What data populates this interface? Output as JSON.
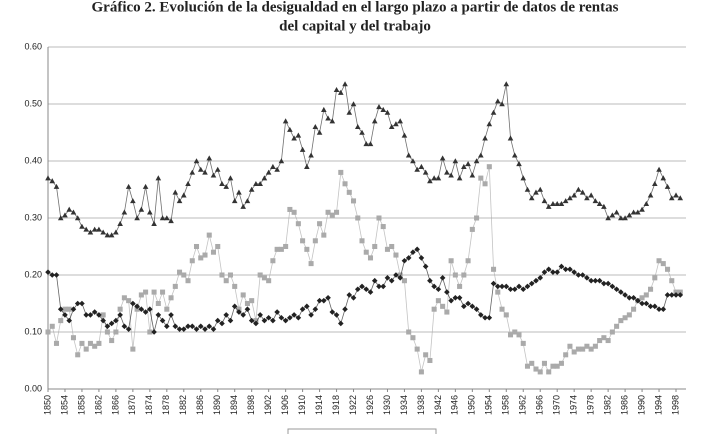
{
  "chart_data": {
    "type": "line",
    "title": [
      "Gráfico 2. Evolución de la desigualdad en el largo plazo a partir de datos de rentas",
      "del capital y del trabajo"
    ],
    "x": [
      1850,
      1851,
      1852,
      1853,
      1854,
      1855,
      1856,
      1857,
      1858,
      1859,
      1860,
      1861,
      1862,
      1863,
      1864,
      1865,
      1866,
      1867,
      1868,
      1869,
      1870,
      1871,
      1872,
      1873,
      1874,
      1875,
      1876,
      1877,
      1878,
      1879,
      1880,
      1881,
      1882,
      1883,
      1884,
      1885,
      1886,
      1887,
      1888,
      1889,
      1890,
      1891,
      1892,
      1893,
      1894,
      1895,
      1896,
      1897,
      1898,
      1899,
      1900,
      1901,
      1902,
      1903,
      1904,
      1905,
      1906,
      1907,
      1908,
      1909,
      1910,
      1911,
      1912,
      1913,
      1914,
      1915,
      1916,
      1917,
      1918,
      1919,
      1920,
      1921,
      1922,
      1923,
      1924,
      1925,
      1926,
      1927,
      1928,
      1929,
      1930,
      1931,
      1932,
      1933,
      1934,
      1935,
      1936,
      1937,
      1938,
      1939,
      1940,
      1941,
      1942,
      1943,
      1944,
      1945,
      1946,
      1947,
      1948,
      1949,
      1950,
      1951,
      1952,
      1953,
      1954,
      1955,
      1956,
      1957,
      1958,
      1959,
      1960,
      1961,
      1962,
      1963,
      1964,
      1965,
      1966,
      1967,
      1968,
      1969,
      1970,
      1971,
      1972,
      1973,
      1974,
      1975,
      1976,
      1977,
      1978,
      1979,
      1980,
      1981,
      1982,
      1983,
      1984,
      1985,
      1986,
      1987,
      1988,
      1989,
      1990,
      1991,
      1992,
      1993,
      1994,
      1995,
      1996,
      1997,
      1998,
      1999
    ],
    "series": [
      {
        "color": "#333333",
        "marker": "triangle",
        "values": [
          0.37,
          0.365,
          0.355,
          0.3,
          0.305,
          0.315,
          0.31,
          0.3,
          0.285,
          0.28,
          0.275,
          0.28,
          0.28,
          0.275,
          0.27,
          0.27,
          0.275,
          0.29,
          0.31,
          0.355,
          0.33,
          0.3,
          0.315,
          0.355,
          0.31,
          0.29,
          0.37,
          0.3,
          0.3,
          0.295,
          0.345,
          0.33,
          0.34,
          0.36,
          0.38,
          0.4,
          0.385,
          0.38,
          0.405,
          0.375,
          0.385,
          0.36,
          0.355,
          0.37,
          0.33,
          0.345,
          0.32,
          0.33,
          0.35,
          0.36,
          0.36,
          0.37,
          0.38,
          0.39,
          0.385,
          0.4,
          0.47,
          0.455,
          0.44,
          0.445,
          0.42,
          0.39,
          0.41,
          0.46,
          0.45,
          0.49,
          0.475,
          0.47,
          0.525,
          0.52,
          0.535,
          0.485,
          0.5,
          0.46,
          0.45,
          0.43,
          0.43,
          0.47,
          0.495,
          0.49,
          0.485,
          0.46,
          0.465,
          0.47,
          0.445,
          0.41,
          0.4,
          0.385,
          0.39,
          0.38,
          0.365,
          0.37,
          0.37,
          0.405,
          0.38,
          0.375,
          0.4,
          0.37,
          0.39,
          0.395,
          0.375,
          0.4,
          0.41,
          0.44,
          0.465,
          0.485,
          0.505,
          0.5,
          0.535,
          0.44,
          0.41,
          0.395,
          0.37,
          0.35,
          0.335,
          0.345,
          0.35,
          0.33,
          0.32,
          0.325,
          0.325,
          0.325,
          0.33,
          0.335,
          0.34,
          0.35,
          0.345,
          0.335,
          0.34,
          0.33,
          0.325,
          0.32,
          0.3,
          0.305,
          0.31,
          0.3,
          0.3,
          0.305,
          0.31,
          0.31,
          0.315,
          0.325,
          0.34,
          0.36,
          0.385,
          0.37,
          0.355,
          0.335,
          0.34,
          0.335
        ]
      },
      {
        "color": "#aaaaaa",
        "marker": "square",
        "values": [
          0.1,
          0.11,
          0.08,
          0.12,
          0.14,
          0.14,
          0.09,
          0.06,
          0.08,
          0.07,
          0.08,
          0.075,
          0.08,
          0.13,
          0.1,
          0.085,
          0.1,
          0.14,
          0.16,
          0.155,
          0.07,
          0.14,
          0.165,
          0.17,
          0.1,
          0.17,
          0.15,
          0.17,
          0.14,
          0.16,
          0.18,
          0.205,
          0.2,
          0.19,
          0.225,
          0.25,
          0.23,
          0.235,
          0.27,
          0.24,
          0.25,
          0.2,
          0.19,
          0.2,
          0.18,
          0.14,
          0.165,
          0.15,
          0.155,
          0.12,
          0.2,
          0.195,
          0.19,
          0.225,
          0.245,
          0.245,
          0.25,
          0.315,
          0.31,
          0.29,
          0.26,
          0.245,
          0.22,
          0.26,
          0.29,
          0.27,
          0.31,
          0.305,
          0.31,
          0.38,
          0.36,
          0.345,
          0.33,
          0.3,
          0.26,
          0.24,
          0.23,
          0.25,
          0.3,
          0.285,
          0.245,
          0.25,
          0.235,
          0.2,
          0.19,
          0.1,
          0.09,
          0.07,
          0.03,
          0.06,
          0.05,
          0.14,
          0.155,
          0.145,
          0.135,
          0.225,
          0.2,
          0.18,
          0.2,
          0.225,
          0.28,
          0.3,
          0.37,
          0.36,
          0.39,
          0.21,
          0.17,
          0.14,
          0.13,
          0.095,
          0.1,
          0.095,
          0.08,
          0.04,
          0.045,
          0.035,
          0.03,
          0.045,
          0.03,
          0.04,
          0.04,
          0.045,
          0.06,
          0.075,
          0.065,
          0.07,
          0.07,
          0.075,
          0.07,
          0.075,
          0.085,
          0.09,
          0.085,
          0.1,
          0.11,
          0.12,
          0.125,
          0.13,
          0.14,
          0.155,
          0.16,
          0.165,
          0.175,
          0.195,
          0.225,
          0.22,
          0.21,
          0.19,
          0.17,
          0.17
        ]
      },
      {
        "color": "#222222",
        "marker": "diamond",
        "values": [
          0.205,
          0.2,
          0.2,
          0.14,
          0.13,
          0.12,
          0.14,
          0.15,
          0.15,
          0.13,
          0.13,
          0.135,
          0.13,
          0.12,
          0.11,
          0.115,
          0.12,
          0.13,
          0.11,
          0.105,
          0.15,
          0.145,
          0.14,
          0.135,
          0.14,
          0.1,
          0.13,
          0.12,
          0.11,
          0.13,
          0.11,
          0.105,
          0.105,
          0.11,
          0.11,
          0.105,
          0.11,
          0.105,
          0.11,
          0.105,
          0.12,
          0.115,
          0.13,
          0.12,
          0.145,
          0.135,
          0.13,
          0.14,
          0.12,
          0.115,
          0.13,
          0.12,
          0.125,
          0.12,
          0.135,
          0.125,
          0.12,
          0.125,
          0.13,
          0.125,
          0.14,
          0.145,
          0.13,
          0.14,
          0.155,
          0.155,
          0.16,
          0.135,
          0.13,
          0.115,
          0.14,
          0.165,
          0.16,
          0.175,
          0.18,
          0.175,
          0.17,
          0.19,
          0.18,
          0.18,
          0.195,
          0.19,
          0.2,
          0.195,
          0.225,
          0.23,
          0.24,
          0.245,
          0.23,
          0.215,
          0.19,
          0.18,
          0.175,
          0.195,
          0.17,
          0.155,
          0.16,
          0.16,
          0.145,
          0.15,
          0.145,
          0.14,
          0.13,
          0.125,
          0.125,
          0.185,
          0.18,
          0.18,
          0.18,
          0.175,
          0.175,
          0.18,
          0.175,
          0.18,
          0.185,
          0.19,
          0.195,
          0.205,
          0.21,
          0.205,
          0.205,
          0.215,
          0.21,
          0.21,
          0.205,
          0.2,
          0.2,
          0.195,
          0.19,
          0.19,
          0.19,
          0.185,
          0.185,
          0.18,
          0.175,
          0.17,
          0.165,
          0.16,
          0.16,
          0.155,
          0.15,
          0.15,
          0.145,
          0.145,
          0.14,
          0.14,
          0.165,
          0.165,
          0.165,
          0.165
        ]
      }
    ],
    "xlim": [
      1850,
      2000
    ],
    "xticks": [
      1850,
      1854,
      1858,
      1862,
      1866,
      1870,
      1874,
      1878,
      1882,
      1886,
      1890,
      1894,
      1898,
      1902,
      1906,
      1910,
      1914,
      1918,
      1922,
      1926,
      1930,
      1934,
      1938,
      1942,
      1946,
      1950,
      1954,
      1958,
      1962,
      1966,
      1970,
      1974,
      1978,
      1982,
      1986,
      1990,
      1994,
      1998
    ],
    "ylim": [
      0,
      0.6
    ],
    "yticks": [
      {
        "value": 0,
        "label": "0.00"
      },
      {
        "value": 0.1,
        "label": "0.10"
      },
      {
        "value": 0.2,
        "label": "0.20"
      },
      {
        "value": 0.3,
        "label": "0.30"
      },
      {
        "value": 0.4,
        "label": "0.40"
      },
      {
        "value": 0.5,
        "label": "0.50"
      },
      {
        "value": 0.6,
        "label": "0.60"
      }
    ],
    "grid": true
  }
}
